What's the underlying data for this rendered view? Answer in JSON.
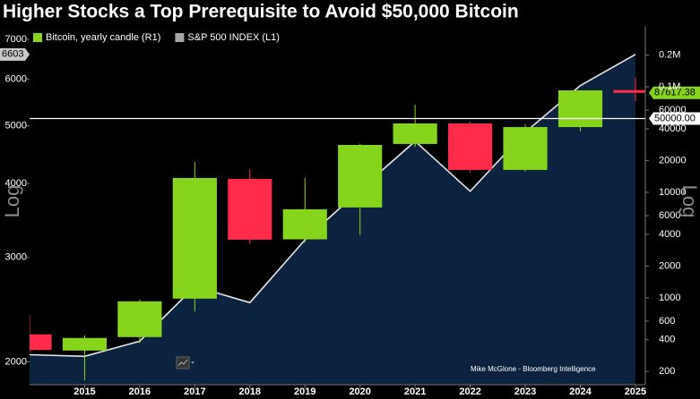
{
  "chart_data": {
    "type": "candlestick",
    "title": "Higher Stocks a Top Prerequisite to Avoid $50,000 Bitcoin",
    "credit": "Mike McGlone - Bloomberg Intelligence",
    "x": [
      2014,
      2015,
      2016,
      2017,
      2018,
      2019,
      2020,
      2021,
      2022,
      2023,
      2024,
      2025
    ],
    "xlim": [
      2014,
      2025.18
    ],
    "xticks": [
      2015,
      2016,
      2017,
      2018,
      2019,
      2020,
      2021,
      2022,
      2023,
      2024,
      2025
    ],
    "ylabel": "Log",
    "y2label": "Log",
    "ylog": true,
    "y2log": true,
    "ylim": [
      1830,
      7350
    ],
    "yticks": [
      2000,
      3000,
      4000,
      5000,
      6000,
      7000
    ],
    "y2lim": [
      150,
      370000
    ],
    "y2ticks": [
      200,
      400,
      600,
      1000,
      2000,
      4000,
      6000,
      10000,
      20000,
      40000,
      60000,
      {
        "value": 100000,
        "label": "0.1M"
      },
      {
        "value": 200000,
        "label": "0.2M"
      }
    ],
    "legend": "upper left",
    "reference_line": {
      "value": 50000,
      "label": "50000.00",
      "axis": "y2",
      "color": "#ffffff"
    },
    "series": [
      {
        "name": "Bitcoin, yearly candle (R1)",
        "type": "candlestick",
        "axis": "y2",
        "color": "#86d51c",
        "down_color": "#ff2b4a",
        "open": [
          450,
          316,
          424,
          981,
          13400,
          3580,
          7180,
          28700,
          44900,
          16300,
          41500,
          93000
        ],
        "high": [
          680,
          440,
          963,
          19400,
          16600,
          13670,
          28900,
          67700,
          46700,
          44000,
          92500,
          121700
        ],
        "low": [
          300,
          165,
          372,
          741,
          3230,
          3350,
          3920,
          27000,
          15400,
          15700,
          37800,
          73000
        ],
        "close": [
          320,
          416,
          925,
          13670,
          3555,
          6900,
          28100,
          44900,
          16300,
          41500,
          92500,
          87617.38
        ]
      },
      {
        "name": "S&P 500 INDEX (L1)",
        "type": "area",
        "color": "#a6a6a6",
        "line_color": "#e6e6e6",
        "fill": "#0c2340",
        "values": [
          2056,
          2043,
          2167,
          2680,
          2517,
          3212,
          3904,
          4713,
          3880,
          4880,
          5850,
          6603
        ]
      }
    ]
  }
}
